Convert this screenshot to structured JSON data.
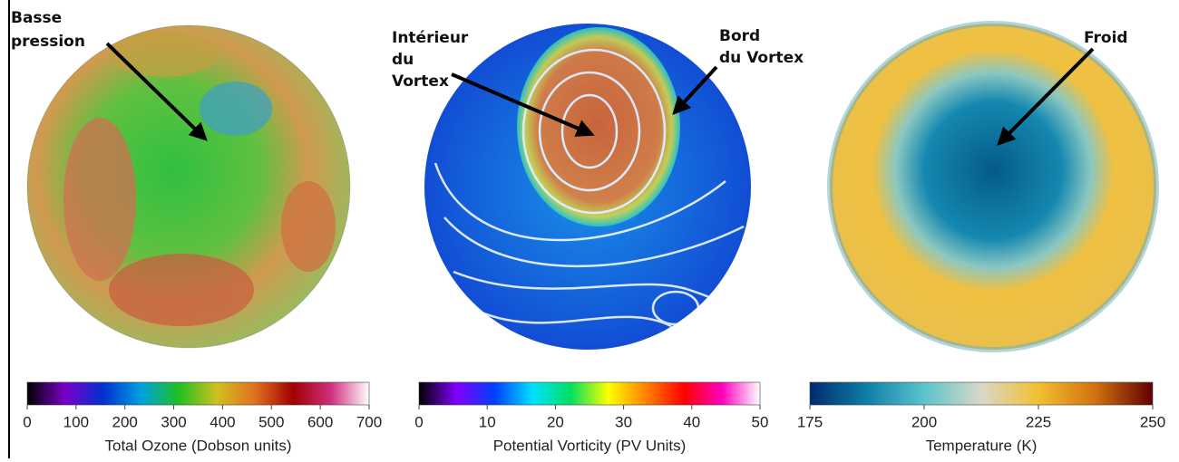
{
  "panels": [
    {
      "annotations": [
        [
          "Basse",
          "pression"
        ]
      ],
      "colorbar": {
        "label": "Total Ozone (Dobson units)",
        "lim": [
          0,
          700
        ],
        "ticks": [
          0,
          100,
          200,
          300,
          400,
          500,
          600,
          700
        ],
        "colors": [
          "#000000",
          "#7a00c8",
          "#0030d0",
          "#00a0e0",
          "#20c020",
          "#d0c020",
          "#e07020",
          "#a00000",
          "#d03080",
          "#ffffff"
        ]
      }
    },
    {
      "annotations": [
        [
          "Intérieur",
          "du",
          "Vortex"
        ],
        [
          "Bord",
          "du Vortex"
        ]
      ],
      "colorbar": {
        "label": "Potential Vorticity (PV Units)",
        "lim": [
          0,
          50
        ],
        "ticks": [
          0,
          10,
          20,
          30,
          40,
          50
        ],
        "colors": [
          "#000000",
          "#8000ff",
          "#0040ff",
          "#00e0ff",
          "#00e060",
          "#ffff00",
          "#ff8000",
          "#ff0000",
          "#ff00c0",
          "#ffffff"
        ]
      }
    },
    {
      "annotations": [
        [
          "Froid"
        ]
      ],
      "colorbar": {
        "label": "Temperature (K)",
        "lim": [
          175,
          250
        ],
        "ticks": [
          175,
          200,
          225,
          250
        ],
        "colors": [
          "#002a6e",
          "#0f7fa8",
          "#5cc4cc",
          "#d8d8c8",
          "#f2c030",
          "#d07010",
          "#600000"
        ]
      }
    }
  ]
}
